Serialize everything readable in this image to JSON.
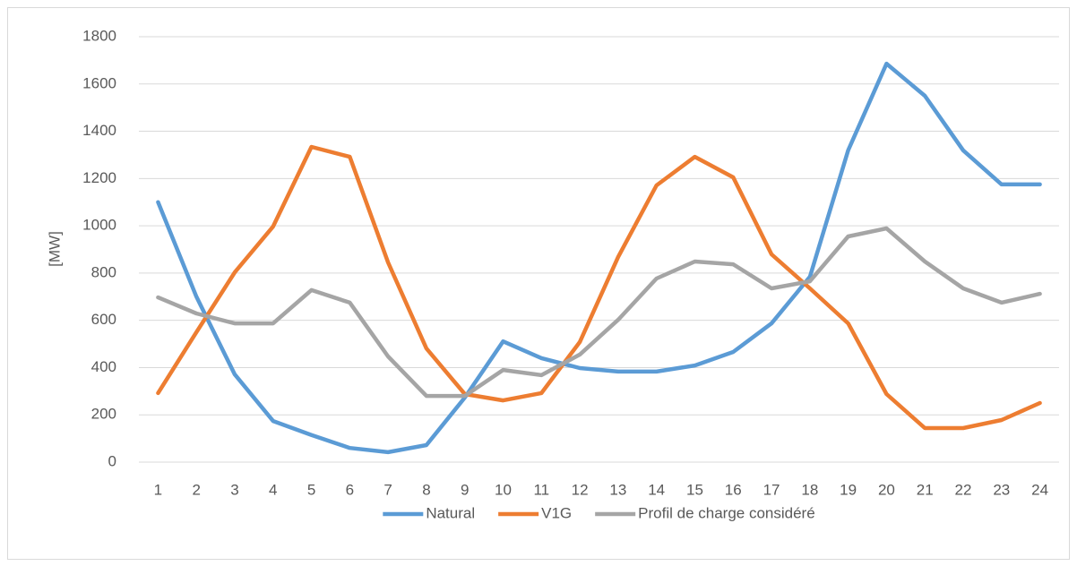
{
  "chart_data": {
    "type": "line",
    "y_label": "[MW]",
    "categories": [
      "1",
      "2",
      "3",
      "4",
      "5",
      "6",
      "7",
      "8",
      "9",
      "10",
      "11",
      "12",
      "13",
      "14",
      "15",
      "16",
      "17",
      "18",
      "19",
      "20",
      "21",
      "22",
      "23",
      "24"
    ],
    "series": [
      {
        "name": "Natural",
        "color": "#5b9bd5",
        "values": [
          1100,
          700,
          371,
          174,
          115,
          60,
          42,
          72,
          273,
          511,
          440,
          398,
          383,
          383,
          409,
          466,
          587,
          784,
          1319,
          1686,
          1550,
          1319,
          1175,
          1175
        ]
      },
      {
        "name": "V1G",
        "color": "#ed7d31",
        "values": [
          292,
          550,
          803,
          997,
          1334,
          1292,
          845,
          481,
          288,
          261,
          292,
          508,
          868,
          1171,
          1292,
          1205,
          879,
          735,
          587,
          288,
          144,
          144,
          178,
          250
        ]
      },
      {
        "name": "Profil de charge considéré",
        "color": "#a5a5a5",
        "values": [
          697,
          629,
          587,
          587,
          728,
          675,
          447,
          280,
          280,
          390,
          368,
          455,
          602,
          777,
          849,
          837,
          735,
          765,
          955,
          989,
          849,
          735,
          675,
          712
        ]
      }
    ],
    "ylim": [
      0,
      1800
    ],
    "yticks": [
      0,
      200,
      400,
      600,
      800,
      1000,
      1200,
      1400,
      1600,
      1800
    ],
    "grid": true,
    "legend": "bottom"
  }
}
